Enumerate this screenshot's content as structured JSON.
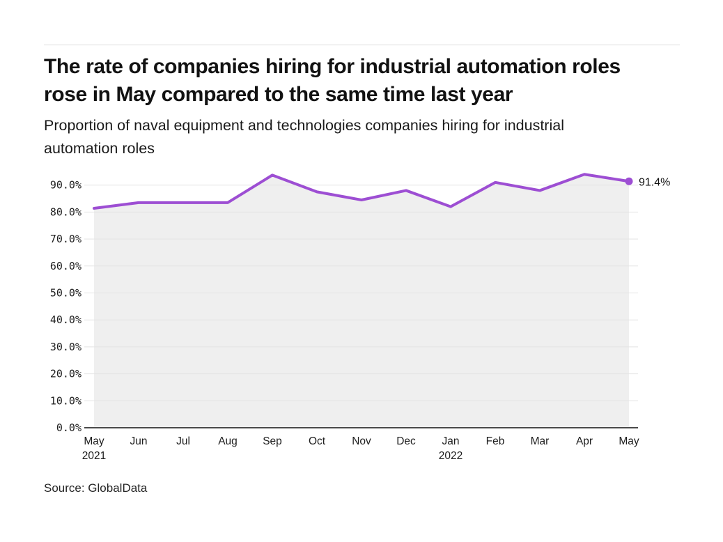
{
  "header": {
    "title": "The rate of companies hiring for industrial automation roles rose in May compared to the same time last year",
    "subtitle": "Proportion of naval equipment and technologies companies hiring for industrial automation roles"
  },
  "footer": {
    "source": "Source: GlobalData"
  },
  "chart_data": {
    "type": "line",
    "title": "Proportion of naval equipment and technologies companies hiring for industrial automation roles",
    "x": [
      "May",
      "Jun",
      "Jul",
      "Aug",
      "Sep",
      "Oct",
      "Nov",
      "Dec",
      "Jan",
      "Feb",
      "Mar",
      "Apr",
      "May"
    ],
    "x_year_labels": [
      {
        "index": 0,
        "label": "2021"
      },
      {
        "index": 8,
        "label": "2022"
      }
    ],
    "values": [
      81.4,
      83.5,
      83.5,
      83.5,
      93.7,
      87.5,
      84.5,
      88.0,
      82.0,
      91.0,
      88.0,
      94.0,
      91.4
    ],
    "unit": "%",
    "end_label": "91.4%",
    "ylim": [
      0,
      100
    ],
    "yticks": [
      0,
      10,
      20,
      30,
      40,
      50,
      60,
      70,
      80,
      90
    ],
    "ytick_labels": [
      "0.0%",
      "10.0%",
      "20.0%",
      "30.0%",
      "40.0%",
      "50.0%",
      "60.0%",
      "70.0%",
      "80.0%",
      "90.0%"
    ],
    "grid": "horizontal",
    "legend": "none",
    "colors": {
      "line": "#9d4ed3",
      "area_fill": "#efefef",
      "gridline": "#e3e3e3",
      "axis": "#4a4a4a",
      "text": "#1d1d1d"
    }
  }
}
